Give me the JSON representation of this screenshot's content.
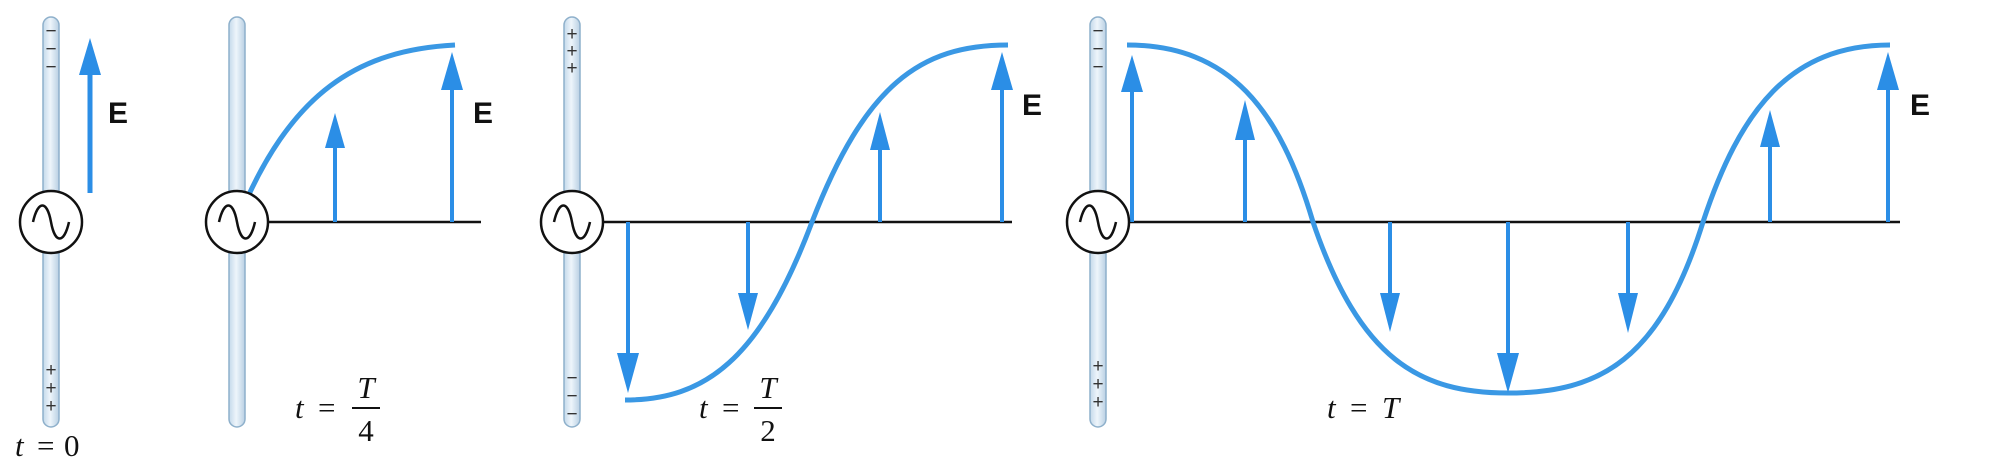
{
  "colors": {
    "wave": "#3a98e4",
    "arrow": "#2b8ee6",
    "antenna_fill": "#d8e7f3",
    "antenna_edge": "#8eb0cb",
    "axis": "#111111"
  },
  "field_label": "E",
  "source_icon": "ac-source-icon",
  "charges": {
    "plus": "+",
    "minus": "−"
  },
  "panels": [
    {
      "id": "t0",
      "time": {
        "var": "t",
        "eq": "=",
        "value": "0"
      },
      "top_charge": "−",
      "bottom_charge": "+",
      "wave_fraction": 0
    },
    {
      "id": "tquarter",
      "time": {
        "var": "t",
        "eq": "=",
        "numerator": "T",
        "denominator": "4"
      },
      "top_charge": "",
      "bottom_charge": "",
      "wave_fraction": 0.25
    },
    {
      "id": "thalf",
      "time": {
        "var": "t",
        "eq": "=",
        "numerator": "T",
        "denominator": "2"
      },
      "top_charge": "+",
      "bottom_charge": "−",
      "wave_fraction": 0.5
    },
    {
      "id": "tfull",
      "time": {
        "var": "t",
        "eq": "=",
        "value": "T"
      },
      "top_charge": "−",
      "bottom_charge": "+",
      "wave_fraction": 1
    }
  ]
}
